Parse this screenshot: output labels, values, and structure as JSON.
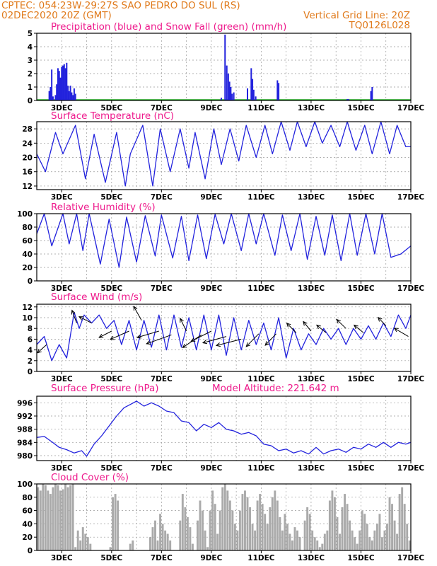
{
  "header": {
    "line1_left": "CPTEC:   054:23W-29:27S  SAO PEDRO DO SUL (RS)",
    "line2_left": "02DEC2020 20Z (GMT)",
    "line2_right": "Vertical Grid Line: 20Z",
    "code": "TQ0126L028"
  },
  "colors": {
    "line": "#2222dd",
    "snow": "#22aa22",
    "cloud": "#aaaaaa",
    "title": "#ee1a8c",
    "header": "#e07a1b"
  },
  "chart_data": [
    {
      "type": "bar",
      "title": "Precipitation (blue) and Snow Fall (green) (mm/h)",
      "ylim": [
        0,
        5
      ],
      "yticks": [
        0,
        1,
        2,
        3,
        4,
        5
      ],
      "xticks": [
        "3DEC",
        "5DEC",
        "7DEC",
        "9DEC",
        "11DEC",
        "13DEC",
        "15DEC",
        "17DEC"
      ],
      "day_range": [
        2.0,
        17.0
      ],
      "x": [
        2.5,
        2.55,
        2.6,
        2.65,
        2.75,
        2.8,
        2.85,
        2.9,
        2.95,
        3.0,
        3.05,
        3.1,
        3.15,
        3.2,
        3.25,
        3.3,
        3.35,
        3.4,
        3.45,
        3.5,
        3.55,
        9.4,
        9.55,
        9.62,
        9.68,
        9.73,
        9.78,
        9.83,
        9.9,
        10.45,
        10.6,
        10.65,
        10.7,
        10.78,
        11.65,
        11.7,
        14.45,
        14.5,
        15.4,
        15.45
      ],
      "values": [
        0.7,
        1.0,
        2.3,
        0.3,
        0.4,
        1.2,
        2.4,
        2.2,
        1.7,
        2.5,
        2.6,
        2.7,
        2.4,
        2.8,
        1.1,
        0.7,
        1.1,
        0.6,
        0.4,
        0.9,
        0.5,
        0.2,
        4.9,
        2.6,
        2.0,
        1.4,
        1.0,
        0.5,
        0.6,
        0.9,
        2.4,
        1.6,
        0.8,
        0.3,
        1.5,
        1.3,
        0.1,
        0.1,
        0.7,
        1.0
      ],
      "snow": "0 throughout"
    },
    {
      "type": "line",
      "title": "Surface Temperature (nC)",
      "ylim": [
        11,
        30
      ],
      "yticks": [
        12,
        16,
        20,
        24,
        28
      ],
      "xticks": [
        "3DEC",
        "5DEC",
        "7DEC",
        "9DEC",
        "11DEC",
        "13DEC",
        "15DEC",
        "17DEC"
      ],
      "day_range": [
        2.0,
        17.0
      ],
      "x": [
        2.0,
        2.35,
        2.75,
        3.05,
        3.55,
        3.95,
        4.3,
        4.75,
        5.2,
        5.55,
        5.75,
        6.25,
        6.65,
        6.95,
        7.35,
        7.75,
        8.1,
        8.35,
        8.75,
        9.1,
        9.4,
        9.75,
        10.1,
        10.4,
        10.8,
        11.15,
        11.45,
        11.8,
        12.15,
        12.45,
        12.8,
        13.15,
        13.45,
        13.8,
        14.15,
        14.45,
        14.8,
        15.15,
        15.45,
        15.8,
        16.15,
        16.45,
        16.8,
        17.0
      ],
      "values": [
        21,
        16,
        27,
        21,
        29,
        14,
        26.5,
        13,
        27,
        12,
        21,
        29,
        12,
        28,
        16,
        28,
        17,
        27,
        14,
        28,
        18,
        28,
        19,
        29,
        20,
        29,
        21,
        30,
        22,
        30,
        23,
        30,
        24,
        29,
        23,
        30,
        22,
        29,
        21,
        30,
        21,
        29,
        23,
        23
      ]
    },
    {
      "type": "line",
      "title": "Relative Humidity (%)",
      "ylim": [
        0,
        100
      ],
      "yticks": [
        0,
        20,
        40,
        60,
        80,
        100
      ],
      "xticks": [
        "3DEC",
        "5DEC",
        "7DEC",
        "9DEC",
        "11DEC",
        "13DEC",
        "15DEC",
        "17DEC"
      ],
      "day_range": [
        2.0,
        17.0
      ],
      "x": [
        2.0,
        2.3,
        2.6,
        3.05,
        3.3,
        3.6,
        3.85,
        4.1,
        4.55,
        4.9,
        5.3,
        5.6,
        6.0,
        6.35,
        6.75,
        7.0,
        7.45,
        7.8,
        8.1,
        8.45,
        8.8,
        9.15,
        9.5,
        9.8,
        10.2,
        10.5,
        10.8,
        11.1,
        11.55,
        11.85,
        12.2,
        12.55,
        12.85,
        13.2,
        13.55,
        13.85,
        14.2,
        14.55,
        14.85,
        15.2,
        15.55,
        15.85,
        16.2,
        16.6,
        17.0
      ],
      "values": [
        70,
        100,
        52,
        100,
        55,
        100,
        45,
        100,
        25,
        92,
        20,
        95,
        28,
        97,
        37,
        98,
        34,
        96,
        30,
        98,
        33,
        99,
        55,
        100,
        45,
        100,
        55,
        100,
        38,
        98,
        45,
        100,
        32,
        96,
        38,
        98,
        30,
        100,
        38,
        100,
        40,
        100,
        35,
        40,
        52
      ]
    },
    {
      "type": "line",
      "title": "Surface Wind (m/s)",
      "ylim": [
        0,
        12.5
      ],
      "yticks": [
        0,
        2,
        4,
        6,
        8,
        10,
        12
      ],
      "xticks": [
        "3DEC",
        "5DEC",
        "7DEC",
        "9DEC",
        "11DEC",
        "13DEC",
        "15DEC",
        "17DEC"
      ],
      "day_range": [
        2.0,
        17.0
      ],
      "x": [
        2.0,
        2.3,
        2.6,
        2.9,
        3.2,
        3.5,
        3.7,
        3.9,
        4.2,
        4.5,
        4.8,
        5.1,
        5.4,
        5.7,
        6.0,
        6.3,
        6.6,
        6.9,
        7.2,
        7.5,
        7.8,
        8.1,
        8.4,
        8.7,
        9.0,
        9.3,
        9.6,
        9.9,
        10.2,
        10.5,
        10.8,
        11.1,
        11.4,
        11.7,
        12.0,
        12.3,
        12.6,
        12.9,
        13.2,
        13.5,
        13.8,
        14.1,
        14.4,
        14.7,
        15.0,
        15.3,
        15.6,
        15.9,
        16.2,
        16.5,
        16.8,
        17.0
      ],
      "values": [
        5,
        6.5,
        2,
        5,
        2.5,
        11,
        8,
        10.5,
        9,
        10.5,
        8,
        9.5,
        5,
        9.5,
        4,
        9.5,
        4.5,
        10.5,
        4,
        10.5,
        4.5,
        10,
        4,
        10.5,
        4,
        10.5,
        3,
        10,
        4,
        9.5,
        5,
        9,
        4,
        10,
        2.5,
        8,
        4,
        7,
        5,
        8,
        6,
        8,
        5,
        8,
        6,
        8.5,
        6,
        9,
        6.5,
        10.5,
        8,
        10.5
      ],
      "arrows": "wind direction vectors (black) drawn at intervals"
    },
    {
      "type": "line",
      "title": "Surface Pressure (hPa)",
      "annotation": "Model Altitude: 221.642 m",
      "ylim": [
        978.5,
        998
      ],
      "yticks": [
        980,
        984,
        988,
        992,
        996
      ],
      "xticks": [
        "3DEC",
        "5DEC",
        "7DEC",
        "9DEC",
        "11DEC",
        "13DEC",
        "15DEC",
        "17DEC"
      ],
      "day_range": [
        2.0,
        17.0
      ],
      "x": [
        2.0,
        2.3,
        2.6,
        2.9,
        3.2,
        3.5,
        3.8,
        4.0,
        4.3,
        4.6,
        4.9,
        5.2,
        5.5,
        5.75,
        6.0,
        6.3,
        6.6,
        6.9,
        7.2,
        7.5,
        7.8,
        8.1,
        8.4,
        8.7,
        9.0,
        9.3,
        9.6,
        9.9,
        10.2,
        10.5,
        10.8,
        11.1,
        11.4,
        11.7,
        12.0,
        12.3,
        12.6,
        12.9,
        13.2,
        13.5,
        13.8,
        14.1,
        14.4,
        14.7,
        15.0,
        15.3,
        15.6,
        15.9,
        16.2,
        16.5,
        16.8,
        17.0
      ],
      "values": [
        985.5,
        985.8,
        984.2,
        982.5,
        981.8,
        980.8,
        981.5,
        979.8,
        983.5,
        986,
        989,
        992,
        994.5,
        995.5,
        996.5,
        995,
        996,
        995,
        993.5,
        993,
        990.5,
        990,
        987.5,
        989.5,
        988.5,
        990,
        988,
        987.5,
        986.5,
        987,
        986,
        983.5,
        983,
        981.5,
        982,
        980.8,
        981.5,
        980.5,
        982.5,
        980.5,
        981.5,
        982,
        981,
        982.5,
        982,
        983.5,
        982.5,
        984,
        982.5,
        984,
        983.5,
        984
      ]
    },
    {
      "type": "bar",
      "title": "Cloud Cover (%)",
      "ylim": [
        0,
        100
      ],
      "yticks": [
        0,
        20,
        40,
        60,
        80,
        100
      ],
      "xticks": [
        "3DEC",
        "5DEC",
        "7DEC",
        "9DEC",
        "11DEC",
        "13DEC",
        "15DEC",
        "17DEC"
      ],
      "day_range": [
        2.0,
        17.0
      ],
      "x": [
        2.05,
        2.15,
        2.25,
        2.35,
        2.45,
        2.55,
        2.65,
        2.75,
        2.85,
        2.95,
        3.05,
        3.15,
        3.25,
        3.35,
        3.45,
        3.55,
        3.65,
        3.75,
        3.85,
        3.95,
        4.05,
        4.15,
        4.25,
        4.35,
        4.45,
        4.55,
        4.65,
        4.75,
        4.85,
        4.95,
        5.05,
        5.15,
        5.25,
        5.35,
        5.45,
        5.55,
        5.65,
        5.75,
        5.85,
        5.95,
        6.05,
        6.15,
        6.25,
        6.35,
        6.45,
        6.55,
        6.65,
        6.75,
        6.85,
        6.95,
        7.05,
        7.15,
        7.25,
        7.35,
        7.45,
        7.55,
        7.65,
        7.75,
        7.85,
        7.95,
        8.05,
        8.15,
        8.25,
        8.35,
        8.45,
        8.55,
        8.65,
        8.75,
        8.85,
        8.95,
        9.05,
        9.15,
        9.25,
        9.35,
        9.45,
        9.55,
        9.65,
        9.75,
        9.85,
        9.95,
        10.05,
        10.15,
        10.25,
        10.35,
        10.45,
        10.55,
        10.65,
        10.75,
        10.85,
        10.95,
        11.05,
        11.15,
        11.25,
        11.35,
        11.45,
        11.55,
        11.65,
        11.75,
        11.85,
        11.95,
        12.05,
        12.15,
        12.25,
        12.35,
        12.45,
        12.55,
        12.65,
        12.75,
        12.85,
        12.95,
        13.05,
        13.15,
        13.25,
        13.35,
        13.45,
        13.55,
        13.65,
        13.75,
        13.85,
        13.95,
        14.05,
        14.15,
        14.25,
        14.35,
        14.45,
        14.55,
        14.65,
        14.75,
        14.85,
        14.95,
        15.05,
        15.15,
        15.25,
        15.35,
        15.45,
        15.55,
        15.65,
        15.75,
        15.85,
        15.95,
        16.05,
        16.15,
        16.25,
        16.35,
        16.45,
        16.55,
        16.65,
        16.75,
        16.85,
        16.95
      ],
      "values": [
        95,
        90,
        100,
        98,
        90,
        85,
        95,
        100,
        98,
        90,
        92,
        100,
        95,
        98,
        100,
        5,
        30,
        15,
        35,
        25,
        20,
        10,
        0,
        0,
        0,
        0,
        0,
        0,
        0,
        5,
        80,
        85,
        75,
        0,
        0,
        0,
        0,
        10,
        15,
        0,
        0,
        0,
        0,
        0,
        0,
        20,
        35,
        45,
        15,
        55,
        40,
        30,
        25,
        15,
        0,
        0,
        0,
        45,
        85,
        65,
        50,
        35,
        10,
        0,
        45,
        75,
        60,
        30,
        5,
        60,
        90,
        70,
        25,
        60,
        95,
        100,
        90,
        75,
        60,
        40,
        30,
        60,
        85,
        90,
        80,
        65,
        40,
        30,
        75,
        85,
        70,
        55,
        40,
        65,
        80,
        90,
        75,
        50,
        30,
        55,
        40,
        25,
        15,
        35,
        30,
        20,
        0,
        45,
        65,
        55,
        30,
        20,
        15,
        5,
        10,
        25,
        30,
        75,
        90,
        80,
        50,
        25,
        65,
        85,
        70,
        45,
        30,
        20,
        10,
        30,
        60,
        55,
        40,
        20,
        15,
        30,
        40,
        55,
        20,
        30,
        40,
        80,
        70,
        45,
        25,
        85,
        95,
        70,
        40,
        15
      ]
    }
  ]
}
